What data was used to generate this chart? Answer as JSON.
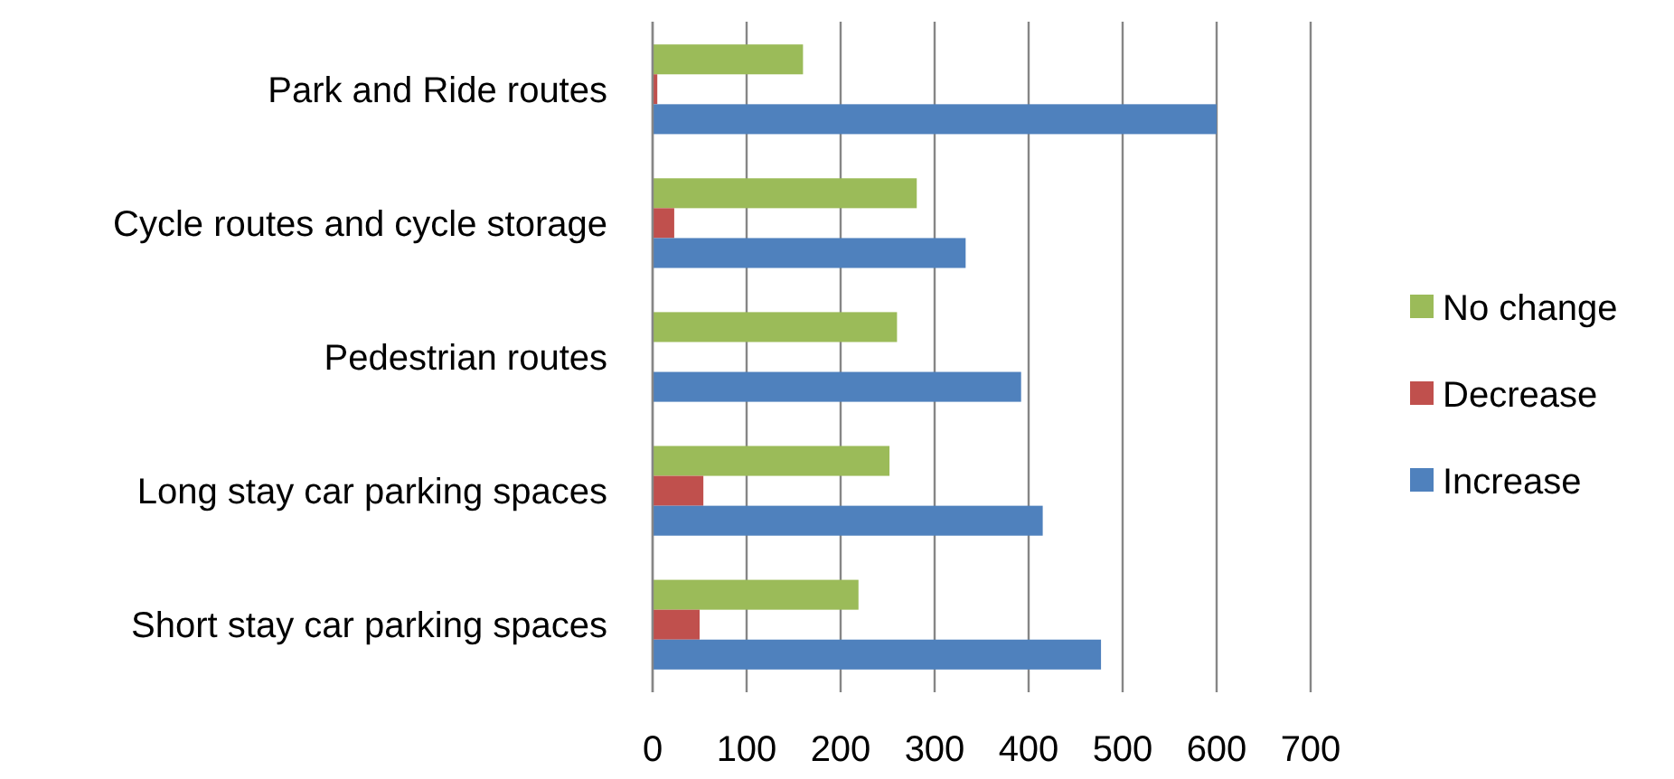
{
  "chart_data": {
    "type": "bar",
    "orientation": "horizontal",
    "categories": [
      "Park and Ride routes",
      "Cycle routes and cycle storage",
      "Pedestrian routes",
      "Long stay car parking spaces",
      "Short stay car parking spaces"
    ],
    "series": [
      {
        "name": "No change",
        "color": "#9bbb59",
        "values": [
          160,
          281,
          260,
          252,
          219
        ]
      },
      {
        "name": "Decrease",
        "color": "#c0504d",
        "values": [
          5,
          23,
          0,
          54,
          50
        ]
      },
      {
        "name": "Increase",
        "color": "#4f81bd",
        "values": [
          600,
          333,
          392,
          415,
          477
        ]
      }
    ],
    "xlim": [
      0,
      700
    ],
    "xticks": [
      0,
      100,
      200,
      300,
      400,
      500,
      600,
      700
    ],
    "grid": "x",
    "legend": "right"
  }
}
